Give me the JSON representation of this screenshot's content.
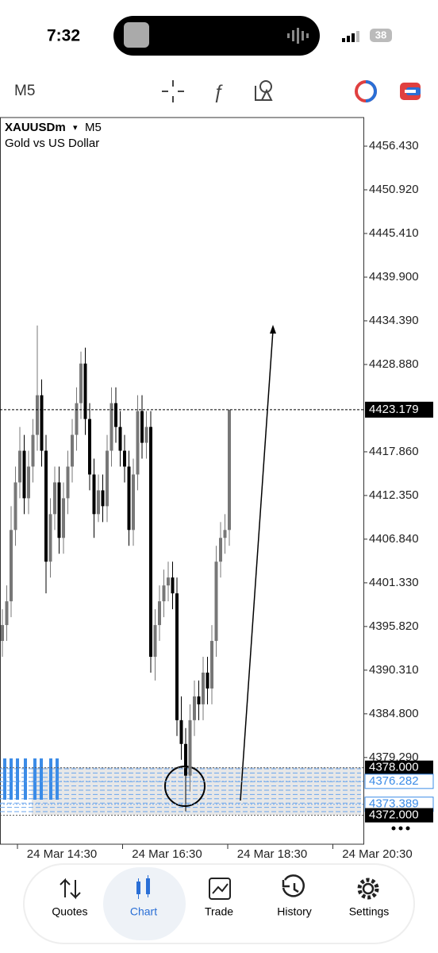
{
  "status_bar": {
    "time": "7:32",
    "battery": "38"
  },
  "toolbar": {
    "timeframe": "M5"
  },
  "chart_data": {
    "type": "candlestick",
    "symbol": "XAUUSDm",
    "symbol_caret": "▾",
    "timeframe": "M5",
    "subtitle": "Gold vs US Dollar",
    "open": [
      4394,
      4396,
      4399,
      4408,
      4414,
      4418,
      4412,
      4416,
      4420,
      4425,
      4418,
      4404,
      4410,
      4414,
      4407,
      4412,
      4416,
      4420,
      4424,
      4429,
      4422,
      4415,
      4410,
      4413,
      4411,
      4418,
      4424,
      4421,
      4418,
      4416,
      4408,
      4415,
      4423,
      4419,
      4421,
      4392,
      4396,
      4399,
      4401,
      4402,
      4400,
      4384,
      4381,
      4377,
      4384,
      4387,
      4386,
      4390,
      4388,
      4394,
      4404,
      4407,
      4408
    ],
    "high": [
      4398,
      4401,
      4411,
      4416,
      4421,
      4420,
      4418,
      4422,
      4433.8,
      4427,
      4420,
      4412,
      4416,
      4416,
      4414,
      4418,
      4422,
      4426,
      4430.5,
      4431,
      4424,
      4417,
      4415,
      4415,
      4420,
      4426,
      4426,
      4423,
      4420,
      4418,
      4417,
      4425,
      4425,
      4423,
      4423,
      4398,
      4401,
      4403,
      4404,
      4404,
      4402,
      4387,
      4383,
      4386,
      4389,
      4389,
      4392,
      4392,
      4396,
      4406,
      4409,
      4410,
      4423.179
    ],
    "low": [
      4392,
      4394,
      4397,
      4406,
      4412,
      4410,
      4410,
      4414,
      4418,
      4416,
      4400,
      4402,
      4408,
      4405,
      4405,
      4410,
      4414,
      4418,
      4422,
      4420,
      4413,
      4407,
      4409,
      4409,
      4409,
      4416,
      4419,
      4416,
      4414,
      4406,
      4406,
      4413,
      4417,
      4417,
      4390,
      4389,
      4394,
      4397,
      4399,
      4398,
      4382,
      4379,
      4372.5,
      4375,
      4382,
      4384,
      4384,
      4386,
      4386,
      4392,
      4402,
      4405,
      4406
    ],
    "close": [
      4396,
      4399,
      4408,
      4414,
      4418,
      4412,
      4416,
      4420,
      4425,
      4418,
      4404,
      4410,
      4414,
      4407,
      4412,
      4416,
      4420,
      4424,
      4429,
      4422,
      4415,
      4410,
      4413,
      4411,
      4418,
      4424,
      4421,
      4418,
      4416,
      4408,
      4415,
      4423,
      4419,
      4421,
      4392,
      4396,
      4399,
      4401,
      4402,
      4400,
      4384,
      4381,
      4377,
      4384,
      4387,
      4386,
      4390,
      4388,
      4394,
      4404,
      4407,
      4408,
      4423.179
    ],
    "up_color": "#777777",
    "down_color": "#000000",
    "ylim": [
      4368.35,
      4460.04
    ],
    "yticks": [
      {
        "value": 4456.43,
        "label": "4456.430"
      },
      {
        "value": 4450.92,
        "label": "4450.920"
      },
      {
        "value": 4445.41,
        "label": "4445.410"
      },
      {
        "value": 4439.9,
        "label": "4439.900"
      },
      {
        "value": 4434.39,
        "label": "4434.390"
      },
      {
        "value": 4428.88,
        "label": "4428.880"
      },
      {
        "value": 4417.86,
        "label": "4417.860"
      },
      {
        "value": 4412.35,
        "label": "4412.350"
      },
      {
        "value": 4406.84,
        "label": "4406.840"
      },
      {
        "value": 4401.33,
        "label": "4401.330"
      },
      {
        "value": 4395.82,
        "label": "4395.820"
      },
      {
        "value": 4390.31,
        "label": "4390.310"
      },
      {
        "value": 4384.8,
        "label": "4384.800"
      },
      {
        "value": 4379.29,
        "label": "4379.290"
      }
    ],
    "current_price": 4423.179,
    "levels": [
      {
        "value": 4378,
        "label": "4378.000"
      },
      4376.282,
      4373.389,
      {
        "value": 4372,
        "label": "4372.000"
      }
    ],
    "xlabels": [
      "24 Mar 14:30",
      "24 Mar 16:30",
      "24 Mar 18:30",
      "24 Mar 20:30"
    ]
  },
  "nav": [
    {
      "label": "Quotes"
    },
    {
      "label": "Chart"
    },
    {
      "label": "Trade"
    },
    {
      "label": "History"
    },
    {
      "label": "Settings"
    }
  ]
}
